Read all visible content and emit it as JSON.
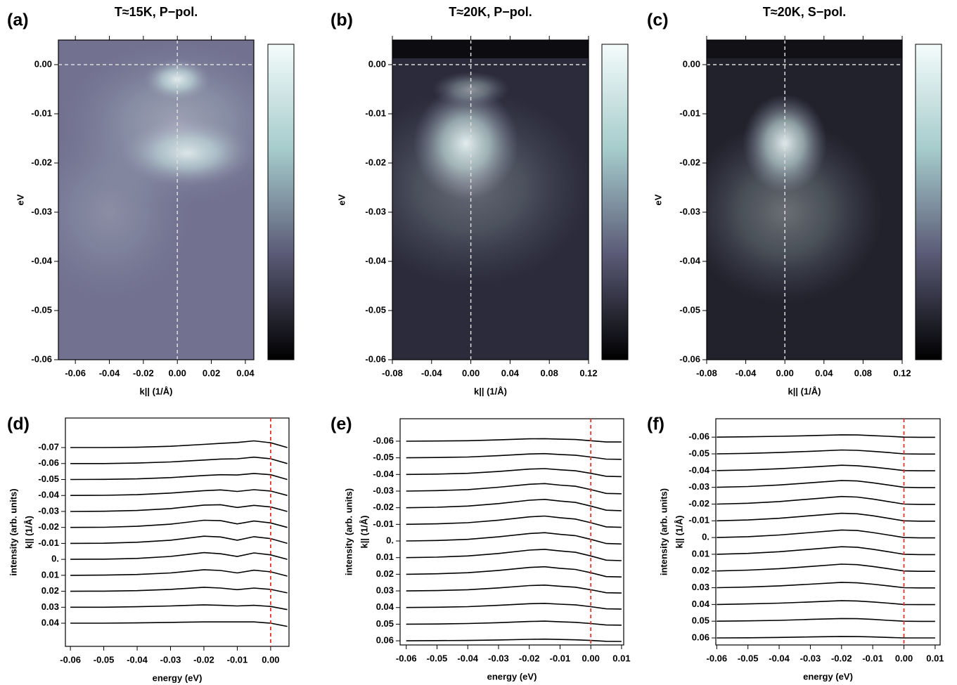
{
  "chart_data": [
    {
      "type": "heatmap",
      "panel_label": "(a)",
      "title": "T≈15K, P−pol.",
      "xlabel": "k|| (1/Å)",
      "ylabel": "eV",
      "xlim": [
        -0.07,
        0.045
      ],
      "ylim": [
        -0.06,
        0.005
      ],
      "xticks": [
        -0.06,
        -0.04,
        -0.02,
        {
          "value": 0,
          "label": "0.00"
        },
        0.02,
        0.04
      ],
      "yticks": [
        {
          "value": 0,
          "label": "0.00"
        },
        -0.01,
        -0.02,
        -0.03,
        -0.04,
        -0.05,
        -0.06
      ],
      "reference_x": 0,
      "reference_y": 0,
      "colormap": [
        "#000000",
        "#5a5a76",
        "#a6cccc",
        "#f4fbfb"
      ]
    },
    {
      "type": "heatmap",
      "panel_label": "(b)",
      "title": "T≈20K, P−pol.",
      "xlabel": "k|| (1/Å)",
      "ylabel": "eV",
      "xlim": [
        -0.08,
        0.12
      ],
      "ylim": [
        -0.06,
        0.005
      ],
      "xticks": [
        -0.08,
        -0.04,
        {
          "value": 0,
          "label": "0.00"
        },
        0.04,
        0.08,
        0.12
      ],
      "yticks": [
        {
          "value": 0,
          "label": "0.00"
        },
        -0.01,
        -0.02,
        -0.03,
        -0.04,
        -0.05,
        -0.06
      ],
      "reference_x": 0,
      "reference_y": 0,
      "colormap": [
        "#000000",
        "#5a5a76",
        "#a6cccc",
        "#f4fbfb"
      ]
    },
    {
      "type": "heatmap",
      "panel_label": "(c)",
      "title": "T≈20K, S−pol.",
      "xlabel": "k|| (1/Å)",
      "ylabel": "eV",
      "xlim": [
        -0.08,
        0.12
      ],
      "ylim": [
        -0.06,
        0.005
      ],
      "xticks": [
        -0.08,
        -0.04,
        {
          "value": 0,
          "label": "0.00"
        },
        0.04,
        0.08,
        0.12
      ],
      "yticks": [
        {
          "value": 0,
          "label": "0.00"
        },
        -0.01,
        -0.02,
        -0.03,
        -0.04,
        -0.05,
        -0.06
      ],
      "reference_x": 0,
      "reference_y": 0,
      "colormap": [
        "#000000",
        "#5a5a76",
        "#a6cccc",
        "#f4fbfb"
      ]
    },
    {
      "type": "waterfall",
      "panel_label": "(d)",
      "xlabel": "energy (eV)",
      "ylabel": "intensity (arb. units)",
      "ylabel2": "k|| (1/Å)",
      "xlim": [
        -0.0615,
        0.0055
      ],
      "ylim": [
        -1.15,
        13.15
      ],
      "reference_x": 0,
      "reference_color": "#e8322a",
      "color": "#000000",
      "xticks": [
        -0.06,
        -0.05,
        -0.04,
        -0.03,
        -0.02,
        -0.01,
        {
          "value": 0,
          "label": "0.00"
        }
      ],
      "yticks": [
        {
          "value": 11.3,
          "label": "-0.07"
        },
        {
          "value": 10.3,
          "label": "-0.06"
        },
        {
          "value": 9.3,
          "label": "-0.05"
        },
        {
          "value": 8.3,
          "label": "-0.04"
        },
        {
          "value": 7.3,
          "label": "-0.03"
        },
        {
          "value": 6.3,
          "label": "-0.02"
        },
        {
          "value": 5.3,
          "label": "-0.01"
        },
        {
          "value": 4.3,
          "label": "0."
        },
        {
          "value": 3.3,
          "label": "0.01"
        },
        {
          "value": 2.3,
          "label": "0.02"
        },
        {
          "value": 1.3,
          "label": "0.03"
        },
        {
          "value": 0.3,
          "label": "0.04"
        }
      ],
      "x": [
        -0.06,
        -0.05,
        -0.04,
        -0.03,
        -0.02,
        -0.015,
        -0.01,
        -0.005,
        0,
        0.005
      ],
      "series": [
        {
          "values": [
            11.3,
            11.3,
            11.32,
            11.38,
            11.5,
            11.56,
            11.62,
            11.72,
            11.6,
            11.3
          ]
        },
        {
          "values": [
            10.3,
            10.3,
            10.33,
            10.4,
            10.52,
            10.58,
            10.6,
            10.7,
            10.6,
            10.3
          ]
        },
        {
          "values": [
            9.3,
            9.31,
            9.34,
            9.42,
            9.55,
            9.6,
            9.58,
            9.68,
            9.6,
            9.3
          ]
        },
        {
          "values": [
            8.3,
            8.31,
            8.35,
            8.45,
            8.6,
            8.65,
            8.55,
            8.66,
            8.58,
            8.3
          ]
        },
        {
          "values": [
            7.3,
            7.31,
            7.36,
            7.48,
            7.7,
            7.72,
            7.55,
            7.68,
            7.58,
            7.3
          ]
        },
        {
          "values": [
            6.3,
            6.31,
            6.37,
            6.5,
            6.75,
            6.72,
            6.52,
            6.7,
            6.58,
            6.3
          ]
        },
        {
          "values": [
            5.3,
            5.31,
            5.37,
            5.5,
            5.75,
            5.7,
            5.5,
            5.72,
            5.6,
            5.3
          ]
        },
        {
          "values": [
            4.3,
            4.31,
            4.36,
            4.48,
            4.72,
            4.65,
            4.48,
            4.7,
            4.58,
            4.3
          ]
        },
        {
          "values": [
            3.3,
            3.31,
            3.35,
            3.45,
            3.65,
            3.6,
            3.45,
            3.62,
            3.52,
            3.25
          ]
        },
        {
          "values": [
            2.3,
            2.31,
            2.34,
            2.42,
            2.55,
            2.5,
            2.4,
            2.5,
            2.42,
            2.2
          ]
        },
        {
          "values": [
            1.3,
            1.3,
            1.33,
            1.38,
            1.45,
            1.42,
            1.38,
            1.42,
            1.35,
            1.15
          ]
        },
        {
          "values": [
            0.3,
            0.3,
            0.32,
            0.35,
            0.38,
            0.38,
            0.38,
            0.38,
            0.3,
            0.1
          ]
        }
      ]
    },
    {
      "type": "waterfall",
      "panel_label": "(e)",
      "xlabel": "energy (eV)",
      "ylabel": "intensity (arb. units)",
      "ylabel2": "k|| (1/Å)",
      "xlim": [
        -0.062,
        0.0107
      ],
      "ylim": [
        0.05,
        13.65
      ],
      "reference_x": 0,
      "reference_color": "#e8322a",
      "color": "#000000",
      "xticks": [
        -0.06,
        -0.05,
        -0.04,
        -0.03,
        -0.02,
        -0.01,
        {
          "value": 0,
          "label": "0.00"
        },
        0.01
      ],
      "yticks": [
        {
          "value": 12.3,
          "label": "-0.06"
        },
        {
          "value": 11.3,
          "label": "-0.05"
        },
        {
          "value": 10.3,
          "label": "-0.04"
        },
        {
          "value": 9.3,
          "label": "-0.03"
        },
        {
          "value": 8.3,
          "label": "-0.02"
        },
        {
          "value": 7.3,
          "label": "-0.01"
        },
        {
          "value": 6.3,
          "label": "0."
        },
        {
          "value": 5.3,
          "label": "0.01"
        },
        {
          "value": 4.3,
          "label": "0.02"
        },
        {
          "value": 3.3,
          "label": "0.03"
        },
        {
          "value": 2.3,
          "label": "0.04"
        },
        {
          "value": 1.3,
          "label": "0.05"
        },
        {
          "value": 0.3,
          "label": "0.06"
        }
      ],
      "x": [
        -0.06,
        -0.05,
        -0.04,
        -0.03,
        -0.02,
        -0.015,
        -0.01,
        -0.005,
        0,
        0.005,
        0.01
      ],
      "series": [
        {
          "values": [
            12.3,
            12.31,
            12.33,
            12.38,
            12.44,
            12.45,
            12.42,
            12.4,
            12.33,
            12.25,
            12.25
          ]
        },
        {
          "values": [
            11.3,
            11.32,
            11.35,
            11.43,
            11.53,
            11.55,
            11.5,
            11.46,
            11.35,
            11.22,
            11.21
          ]
        },
        {
          "values": [
            10.3,
            10.32,
            10.37,
            10.48,
            10.62,
            10.65,
            10.58,
            10.52,
            10.37,
            10.19,
            10.17
          ]
        },
        {
          "values": [
            9.3,
            9.33,
            9.39,
            9.53,
            9.71,
            9.75,
            9.66,
            9.59,
            9.39,
            9.16,
            9.14
          ]
        },
        {
          "values": [
            8.3,
            8.33,
            8.4,
            8.55,
            8.75,
            8.8,
            8.7,
            8.62,
            8.4,
            8.15,
            8.12
          ]
        },
        {
          "values": [
            7.3,
            7.33,
            7.4,
            7.55,
            7.75,
            7.8,
            7.7,
            7.62,
            7.4,
            7.15,
            7.12
          ]
        },
        {
          "values": [
            6.3,
            6.33,
            6.4,
            6.55,
            6.75,
            6.8,
            6.7,
            6.62,
            6.4,
            6.15,
            6.12
          ]
        },
        {
          "values": [
            5.3,
            5.33,
            5.4,
            5.55,
            5.75,
            5.8,
            5.7,
            5.62,
            5.4,
            5.15,
            5.12
          ]
        },
        {
          "values": [
            4.3,
            4.33,
            4.39,
            4.53,
            4.71,
            4.75,
            4.66,
            4.59,
            4.39,
            4.16,
            4.14
          ]
        },
        {
          "values": [
            3.3,
            3.32,
            3.37,
            3.48,
            3.62,
            3.65,
            3.58,
            3.52,
            3.37,
            3.19,
            3.17
          ]
        },
        {
          "values": [
            2.3,
            2.32,
            2.35,
            2.43,
            2.53,
            2.55,
            2.5,
            2.46,
            2.35,
            2.22,
            2.21
          ]
        },
        {
          "values": [
            1.3,
            1.31,
            1.34,
            1.39,
            1.46,
            1.48,
            1.44,
            1.41,
            1.34,
            1.25,
            1.24
          ]
        },
        {
          "values": [
            0.3,
            0.31,
            0.32,
            0.35,
            0.39,
            0.4,
            0.38,
            0.36,
            0.32,
            0.27,
            0.26
          ]
        }
      ]
    },
    {
      "type": "waterfall",
      "panel_label": "(f)",
      "xlabel": "energy (eV)",
      "ylabel": "intensity (arb. units)",
      "ylabel2": "k|| (1/Å)",
      "xlim": [
        -0.0603,
        0.0116
      ],
      "ylim": [
        -0.12,
        13.4
      ],
      "reference_x": 0,
      "reference_color": "#e8322a",
      "color": "#000000",
      "xticks": [
        -0.06,
        -0.05,
        -0.04,
        -0.03,
        -0.02,
        -0.01,
        {
          "value": 0,
          "label": "0.00"
        },
        0.01
      ],
      "yticks": [
        {
          "value": 12.3,
          "label": "-0.06"
        },
        {
          "value": 11.3,
          "label": "-0.05"
        },
        {
          "value": 10.3,
          "label": "-0.04"
        },
        {
          "value": 9.3,
          "label": "-0.03"
        },
        {
          "value": 8.3,
          "label": "-0.02"
        },
        {
          "value": 7.3,
          "label": "-0.01"
        },
        {
          "value": 6.3,
          "label": "0."
        },
        {
          "value": 5.3,
          "label": "0.01"
        },
        {
          "value": 4.3,
          "label": "0.02"
        },
        {
          "value": 3.3,
          "label": "0.03"
        },
        {
          "value": 2.3,
          "label": "0.04"
        },
        {
          "value": 1.3,
          "label": "0.05"
        },
        {
          "value": 0.3,
          "label": "0.06"
        }
      ],
      "x": [
        -0.06,
        -0.05,
        -0.04,
        -0.03,
        -0.02,
        -0.015,
        -0.01,
        -0.005,
        0,
        0.005,
        0.01
      ],
      "series": [
        {
          "values": [
            12.3,
            12.32,
            12.35,
            12.39,
            12.44,
            12.43,
            12.39,
            12.35,
            12.3,
            12.29,
            12.29
          ]
        },
        {
          "values": [
            11.3,
            11.33,
            11.38,
            11.45,
            11.53,
            11.51,
            11.45,
            11.38,
            11.3,
            11.29,
            11.29
          ]
        },
        {
          "values": [
            10.3,
            10.34,
            10.41,
            10.51,
            10.62,
            10.59,
            10.51,
            10.41,
            10.3,
            10.29,
            10.29
          ]
        },
        {
          "values": [
            9.3,
            9.35,
            9.44,
            9.57,
            9.71,
            9.68,
            9.57,
            9.44,
            9.3,
            9.28,
            9.28
          ]
        },
        {
          "values": [
            8.3,
            8.35,
            8.45,
            8.6,
            8.75,
            8.72,
            8.6,
            8.45,
            8.3,
            8.28,
            8.28
          ]
        },
        {
          "values": [
            7.3,
            7.35,
            7.45,
            7.6,
            7.75,
            7.72,
            7.6,
            7.45,
            7.3,
            7.28,
            7.28
          ]
        },
        {
          "values": [
            6.3,
            6.35,
            6.45,
            6.6,
            6.75,
            6.72,
            6.6,
            6.45,
            6.3,
            6.28,
            6.28
          ]
        },
        {
          "values": [
            5.3,
            5.35,
            5.45,
            5.6,
            5.75,
            5.72,
            5.6,
            5.45,
            5.3,
            5.28,
            5.28
          ]
        },
        {
          "values": [
            4.3,
            4.35,
            4.44,
            4.57,
            4.71,
            4.68,
            4.57,
            4.44,
            4.3,
            4.28,
            4.28
          ]
        },
        {
          "values": [
            3.3,
            3.34,
            3.41,
            3.51,
            3.62,
            3.59,
            3.51,
            3.41,
            3.3,
            3.29,
            3.29
          ]
        },
        {
          "values": [
            2.3,
            2.33,
            2.38,
            2.45,
            2.53,
            2.51,
            2.45,
            2.38,
            2.3,
            2.29,
            2.29
          ]
        },
        {
          "values": [
            1.3,
            1.32,
            1.35,
            1.41,
            1.46,
            1.45,
            1.41,
            1.35,
            1.3,
            1.29,
            1.29
          ]
        },
        {
          "values": [
            0.3,
            0.31,
            0.33,
            0.36,
            0.39,
            0.38,
            0.36,
            0.33,
            0.3,
            0.3,
            0.3
          ]
        }
      ]
    }
  ]
}
